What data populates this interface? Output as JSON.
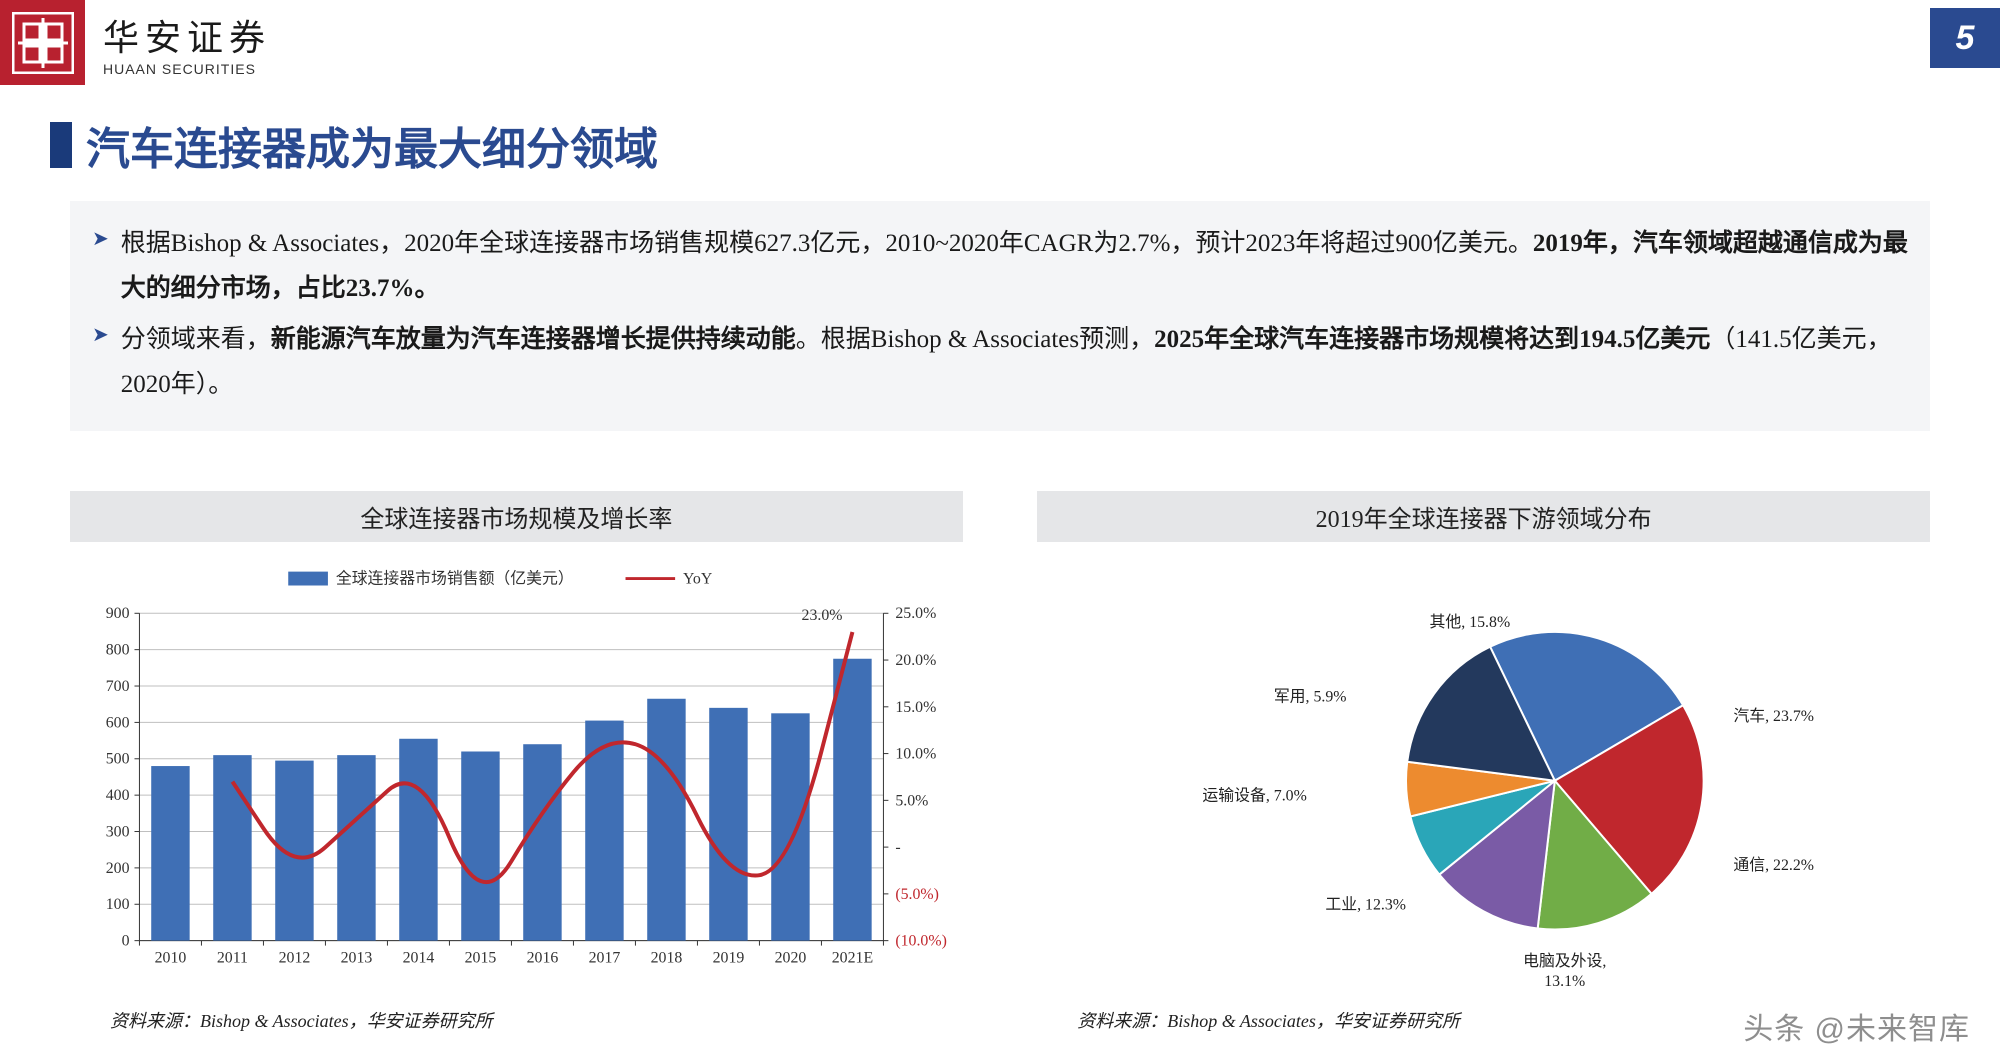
{
  "page_number": "5",
  "page_number_bg": "#2a4a90",
  "company": {
    "cn": "华安证券",
    "en": "HUAAN SECURITIES"
  },
  "logo_bg": "#b8212f",
  "title": "汽车连接器成为最大细分领域",
  "title_color": "#2a4a90",
  "bullets": [
    {
      "marker": "➤",
      "html": "根据Bishop & Associates，2020年全球连接器市场销售规模627.3亿元，2010~2020年CAGR为2.7%，预计2023年将超过900亿美元。<b>2019年，汽车领域超越通信成为最大的细分市场，占比23.7%。</b>"
    },
    {
      "marker": "➤",
      "html": "分领域来看，<b>新能源汽车放量为汽车连接器增长提供持续动能</b>。根据Bishop & Associates预测，<b>2025年全球汽车连接器市场规模将达到194.5亿美元</b>（141.5亿美元，2020年）。"
    }
  ],
  "chart_left": {
    "title": "全球连接器市场规模及增长率",
    "type": "bar+line",
    "legend_bar": "全球连接器市场销售额（亿美元）",
    "legend_line": "YoY",
    "categories": [
      "2010",
      "2011",
      "2012",
      "2013",
      "2014",
      "2015",
      "2016",
      "2017",
      "2018",
      "2019",
      "2020",
      "2021E"
    ],
    "bar_values": [
      480,
      510,
      495,
      510,
      555,
      520,
      540,
      605,
      665,
      640,
      625,
      775
    ],
    "line_values_pct": [
      null,
      7.0,
      -3.0,
      3.0,
      9.0,
      -7.0,
      4.0,
      12.0,
      10.0,
      -3.5,
      -2.5,
      23.0
    ],
    "last_label": "23.0%",
    "bar_color": "#3f6fb5",
    "line_color": "#c0272d",
    "grid_color": "#bfbfbf",
    "axis_color": "#333333",
    "y_left": {
      "min": 0,
      "max": 900,
      "step": 100
    },
    "y_right": {
      "min": -10,
      "max": 25,
      "step": 5,
      "ticks_pct": [
        "25.0%",
        "20.0%",
        "15.0%",
        "10.0%",
        "5.0%",
        "-",
        "(5.0%)",
        "(10.0%)"
      ]
    },
    "label_fontsize": 16,
    "legend_fontsize": 16,
    "source": "资料来源：Bishop & Associates，华安证券研究所"
  },
  "chart_right": {
    "title": "2019年全球连接器下游领域分布",
    "type": "pie",
    "slices": [
      {
        "label": "汽车",
        "value": 23.7,
        "color": "#3f6fb5",
        "text": "汽车, 23.7%"
      },
      {
        "label": "通信",
        "value": 22.2,
        "color": "#c0272d",
        "text": "通信, 22.2%"
      },
      {
        "label": "电脑及外设",
        "value": 13.1,
        "color": "#71ad47",
        "text": "电脑及外设, 13.1%"
      },
      {
        "label": "工业",
        "value": 12.3,
        "color": "#7a5ba6",
        "text": "工业, 12.3%"
      },
      {
        "label": "运输设备",
        "value": 7.0,
        "color": "#2aa6b8",
        "text": "运输设备, 7.0%"
      },
      {
        "label": "军用",
        "value": 5.9,
        "color": "#ed8b2f",
        "text": "军用, 5.9%"
      },
      {
        "label": "其他",
        "value": 15.8,
        "color": "#23395d",
        "text": "其他, 15.8%"
      }
    ],
    "label_color": "#222222",
    "label_fontsize": 16,
    "border_color": "#ffffff",
    "source": "资料来源：Bishop & Associates，华安证券研究所"
  },
  "watermark": "头条 @未来智库"
}
